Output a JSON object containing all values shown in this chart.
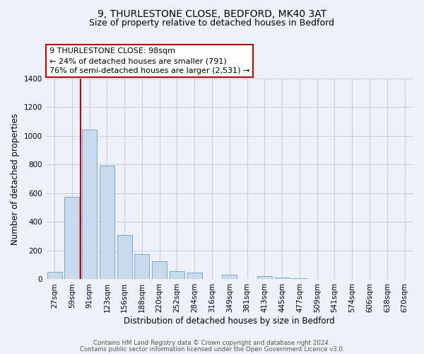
{
  "title": "9, THURLESTONE CLOSE, BEDFORD, MK40 3AT",
  "subtitle": "Size of property relative to detached houses in Bedford",
  "xlabel": "Distribution of detached houses by size in Bedford",
  "ylabel": "Number of detached properties",
  "bar_labels": [
    "27sqm",
    "59sqm",
    "91sqm",
    "123sqm",
    "156sqm",
    "188sqm",
    "220sqm",
    "252sqm",
    "284sqm",
    "316sqm",
    "349sqm",
    "381sqm",
    "413sqm",
    "445sqm",
    "477sqm",
    "509sqm",
    "541sqm",
    "574sqm",
    "606sqm",
    "638sqm",
    "670sqm"
  ],
  "bar_values": [
    50,
    575,
    1045,
    790,
    310,
    175,
    125,
    55,
    45,
    0,
    30,
    0,
    20,
    10,
    5,
    0,
    0,
    0,
    0,
    0,
    0
  ],
  "bar_color_fill": "#c8daee",
  "bar_color_edge": "#7ba8cc",
  "vline_x_idx": 2,
  "vline_color": "#cc0000",
  "annotation_line1": "9 THURLESTONE CLOSE: 98sqm",
  "annotation_line2": "← 24% of detached houses are smaller (791)",
  "annotation_line3": "76% of semi-detached houses are larger (2,531) →",
  "annotation_box_color": "#ffffff",
  "annotation_box_edge": "#cc0000",
  "ylim": [
    0,
    1400
  ],
  "yticks": [
    0,
    200,
    400,
    600,
    800,
    1000,
    1200,
    1400
  ],
  "footer1": "Contains HM Land Registry data © Crown copyright and database right 2024.",
  "footer2": "Contains public sector information licensed under the Open Government Licence v3.0.",
  "bg_color": "#eef2f8",
  "plot_bg_color": "#eef2f8",
  "grid_color": "#c5cfe0",
  "title_fontsize": 10,
  "subtitle_fontsize": 9,
  "ylabel_fontsize": 8.5,
  "xlabel_fontsize": 8.5,
  "tick_fontsize": 7.5,
  "ann_fontsize": 8
}
